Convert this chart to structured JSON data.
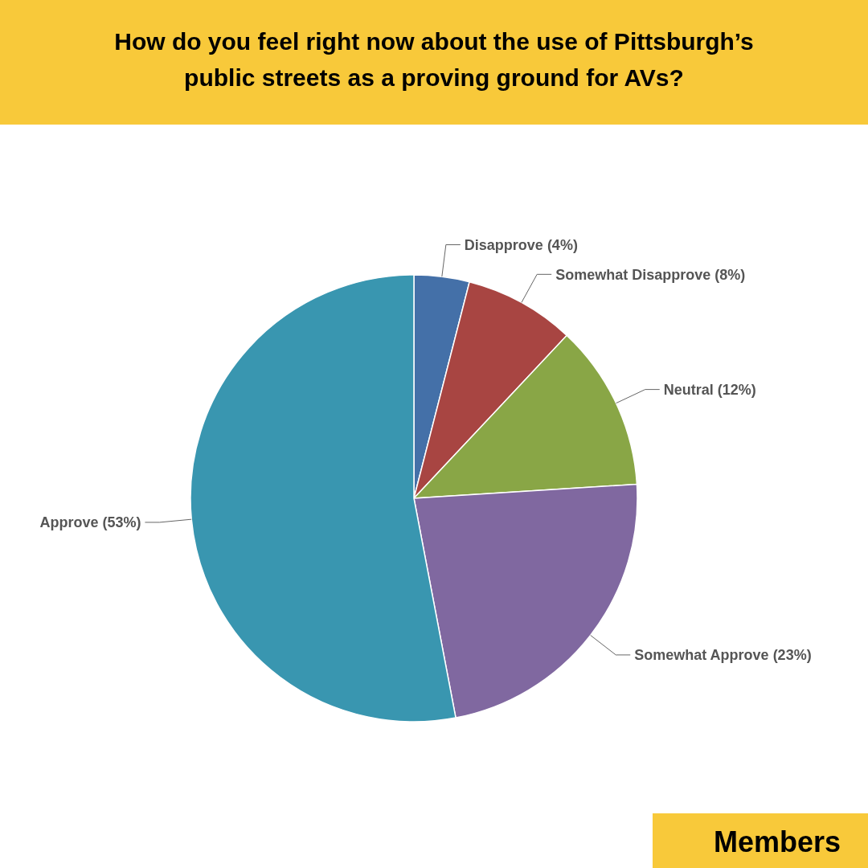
{
  "chart_data": {
    "type": "pie",
    "title": "How do you feel right now about the use of Pittsburgh’s public streets as a proving ground for AVs?",
    "categories": [
      "Disapprove",
      "Somewhat Disapprove",
      "Neutral",
      "Somewhat Approve",
      "Approve"
    ],
    "values": [
      4,
      8,
      12,
      23,
      53
    ],
    "value_labels": [
      "(4%)",
      "(8%)",
      "(12%)",
      "(23%)",
      "(53%)"
    ],
    "colors": [
      "#4470a8",
      "#a84542",
      "#89a646",
      "#8068a0",
      "#3996b0"
    ],
    "annotations": [
      "Members"
    ]
  }
}
